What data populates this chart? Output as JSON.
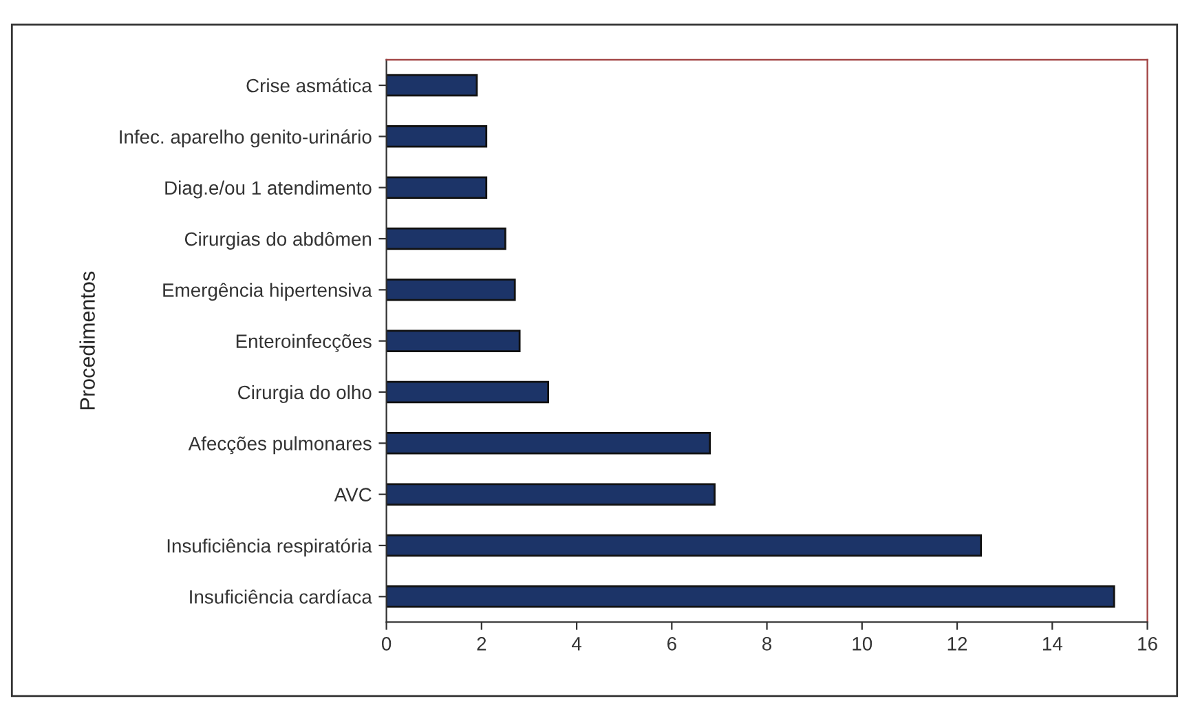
{
  "chart_data": {
    "type": "bar",
    "orientation": "horizontal",
    "ylabel": "Procedimentos",
    "categories": [
      "Crise asmática",
      "Infec. aparelho genito-urinário",
      "Diag.e/ou 1 atendimento",
      "Cirurgias do abdômen",
      "Emergência hipertensiva",
      "Enteroinfecções",
      "Cirurgia do olho",
      "Afecções pulmonares",
      "AVC",
      "Insuficiência respiratória",
      "Insuficiência cardíaca"
    ],
    "values": [
      1.9,
      2.1,
      2.1,
      2.5,
      2.7,
      2.8,
      3.4,
      6.8,
      6.9,
      12.5,
      15.3
    ],
    "color": "#1c3468",
    "xlim": [
      0,
      16
    ],
    "xticks": [
      0,
      2,
      4,
      6,
      8,
      10,
      12,
      14,
      16
    ],
    "grid": false,
    "legend": false
  }
}
